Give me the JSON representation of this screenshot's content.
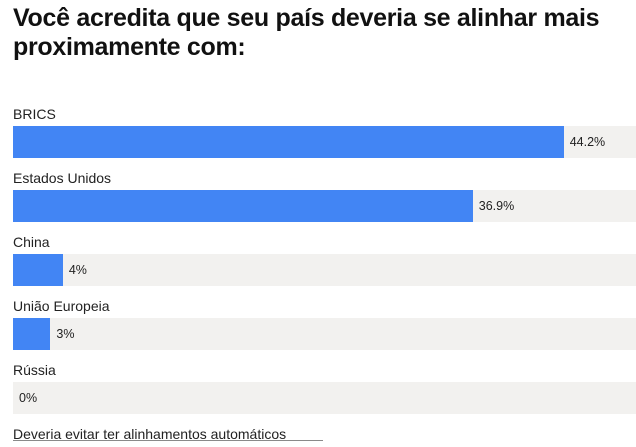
{
  "title": "Você acredita que seu país deveria se alinhar mais proximamente com:",
  "colors": {
    "bar": "#4285f4",
    "track": "#f2f1ef"
  },
  "chart_data": {
    "type": "bar",
    "orientation": "horizontal",
    "title": "Você acredita que seu país deveria se alinhar mais proximamente com:",
    "categories": [
      "BRICS",
      "Estados Unidos",
      "China",
      "União Europeia",
      "Rússia",
      "Deveria evitar ter alinhamentos automáticos"
    ],
    "values": [
      44.2,
      36.9,
      4,
      3,
      0,
      null
    ],
    "value_labels": [
      "44.2%",
      "36.9%",
      "4%",
      "3%",
      "0%",
      ""
    ],
    "unit": "%",
    "xlim": [
      0,
      50
    ],
    "grid": false,
    "legend": "none"
  }
}
